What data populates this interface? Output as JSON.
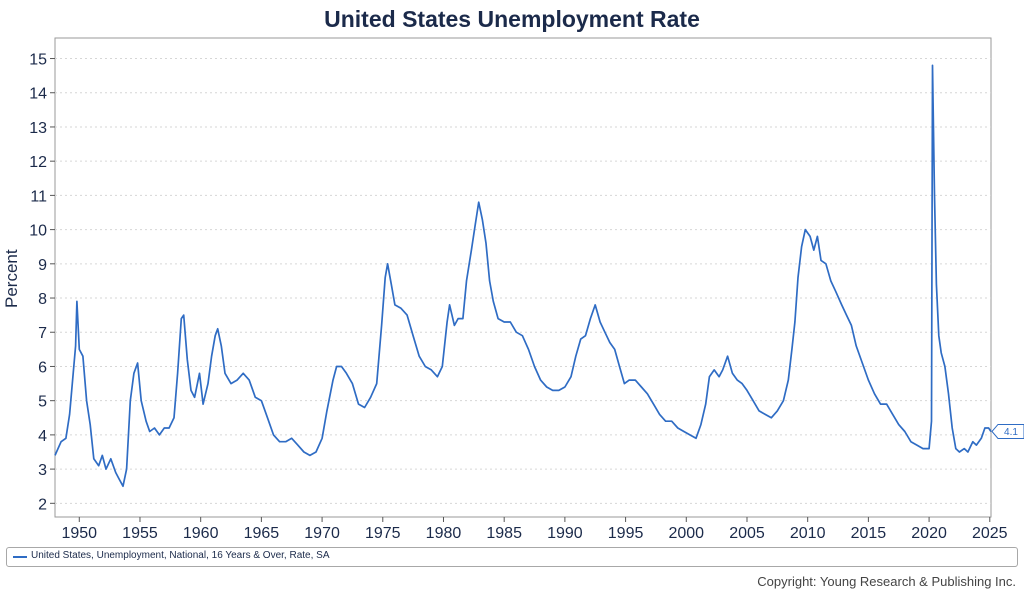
{
  "chart_data": {
    "type": "line",
    "title": "United States Unemployment Rate",
    "xlabel": "",
    "ylabel": "Percent",
    "xlim": [
      1948.0,
      2025.1
    ],
    "ylim": [
      1.6,
      15.6
    ],
    "y_ticks": [
      2,
      3,
      4,
      5,
      6,
      7,
      8,
      9,
      10,
      11,
      12,
      13,
      14,
      15
    ],
    "x_ticks": [
      1950,
      1955,
      1960,
      1965,
      1970,
      1975,
      1980,
      1985,
      1990,
      1995,
      2000,
      2005,
      2010,
      2015,
      2020,
      2025
    ],
    "grid": "horizontal dotted",
    "legend_position": "bottom",
    "last_value_label": "4.1",
    "series": [
      {
        "name": "United States, Unemployment, National, 16 Years & Over, Rate, SA",
        "color": "#2f6cc4",
        "points": [
          [
            1948.0,
            3.4
          ],
          [
            1948.5,
            3.8
          ],
          [
            1948.9,
            3.9
          ],
          [
            1949.2,
            4.6
          ],
          [
            1949.5,
            5.8
          ],
          [
            1949.7,
            6.6
          ],
          [
            1949.8,
            7.9
          ],
          [
            1950.0,
            6.5
          ],
          [
            1950.3,
            6.3
          ],
          [
            1950.6,
            5.0
          ],
          [
            1950.9,
            4.3
          ],
          [
            1951.2,
            3.3
          ],
          [
            1951.6,
            3.1
          ],
          [
            1951.9,
            3.4
          ],
          [
            1952.2,
            3.0
          ],
          [
            1952.6,
            3.3
          ],
          [
            1953.0,
            2.9
          ],
          [
            1953.3,
            2.7
          ],
          [
            1953.6,
            2.5
          ],
          [
            1953.9,
            3.0
          ],
          [
            1954.2,
            5.0
          ],
          [
            1954.5,
            5.8
          ],
          [
            1954.8,
            6.1
          ],
          [
            1955.1,
            5.0
          ],
          [
            1955.5,
            4.4
          ],
          [
            1955.8,
            4.1
          ],
          [
            1956.2,
            4.2
          ],
          [
            1956.6,
            4.0
          ],
          [
            1957.0,
            4.2
          ],
          [
            1957.4,
            4.2
          ],
          [
            1957.8,
            4.5
          ],
          [
            1958.1,
            5.8
          ],
          [
            1958.4,
            7.4
          ],
          [
            1958.6,
            7.5
          ],
          [
            1958.9,
            6.2
          ],
          [
            1959.2,
            5.3
          ],
          [
            1959.5,
            5.1
          ],
          [
            1959.9,
            5.8
          ],
          [
            1960.2,
            4.9
          ],
          [
            1960.6,
            5.5
          ],
          [
            1960.9,
            6.3
          ],
          [
            1961.2,
            6.9
          ],
          [
            1961.4,
            7.1
          ],
          [
            1961.7,
            6.6
          ],
          [
            1962.0,
            5.8
          ],
          [
            1962.5,
            5.5
          ],
          [
            1963.0,
            5.6
          ],
          [
            1963.5,
            5.8
          ],
          [
            1964.0,
            5.6
          ],
          [
            1964.5,
            5.1
          ],
          [
            1965.0,
            5.0
          ],
          [
            1965.5,
            4.5
          ],
          [
            1966.0,
            4.0
          ],
          [
            1966.5,
            3.8
          ],
          [
            1967.0,
            3.8
          ],
          [
            1967.5,
            3.9
          ],
          [
            1968.0,
            3.7
          ],
          [
            1968.5,
            3.5
          ],
          [
            1969.0,
            3.4
          ],
          [
            1969.5,
            3.5
          ],
          [
            1970.0,
            3.9
          ],
          [
            1970.4,
            4.7
          ],
          [
            1970.9,
            5.6
          ],
          [
            1971.2,
            6.0
          ],
          [
            1971.6,
            6.0
          ],
          [
            1972.0,
            5.8
          ],
          [
            1972.5,
            5.5
          ],
          [
            1973.0,
            4.9
          ],
          [
            1973.5,
            4.8
          ],
          [
            1974.0,
            5.1
          ],
          [
            1974.5,
            5.5
          ],
          [
            1974.9,
            7.2
          ],
          [
            1975.2,
            8.6
          ],
          [
            1975.4,
            9.0
          ],
          [
            1975.7,
            8.4
          ],
          [
            1976.0,
            7.8
          ],
          [
            1976.5,
            7.7
          ],
          [
            1977.0,
            7.5
          ],
          [
            1977.5,
            6.9
          ],
          [
            1978.0,
            6.3
          ],
          [
            1978.5,
            6.0
          ],
          [
            1979.0,
            5.9
          ],
          [
            1979.5,
            5.7
          ],
          [
            1979.9,
            6.0
          ],
          [
            1980.3,
            7.3
          ],
          [
            1980.5,
            7.8
          ],
          [
            1980.9,
            7.2
          ],
          [
            1981.2,
            7.4
          ],
          [
            1981.6,
            7.4
          ],
          [
            1981.9,
            8.5
          ],
          [
            1982.3,
            9.4
          ],
          [
            1982.6,
            10.1
          ],
          [
            1982.9,
            10.8
          ],
          [
            1983.2,
            10.3
          ],
          [
            1983.5,
            9.6
          ],
          [
            1983.8,
            8.5
          ],
          [
            1984.1,
            7.9
          ],
          [
            1984.5,
            7.4
          ],
          [
            1985.0,
            7.3
          ],
          [
            1985.5,
            7.3
          ],
          [
            1986.0,
            7.0
          ],
          [
            1986.5,
            6.9
          ],
          [
            1987.0,
            6.5
          ],
          [
            1987.5,
            6.0
          ],
          [
            1988.0,
            5.6
          ],
          [
            1988.5,
            5.4
          ],
          [
            1989.0,
            5.3
          ],
          [
            1989.5,
            5.3
          ],
          [
            1990.0,
            5.4
          ],
          [
            1990.5,
            5.7
          ],
          [
            1990.9,
            6.3
          ],
          [
            1991.3,
            6.8
          ],
          [
            1991.7,
            6.9
          ],
          [
            1992.1,
            7.4
          ],
          [
            1992.5,
            7.8
          ],
          [
            1992.9,
            7.3
          ],
          [
            1993.3,
            7.0
          ],
          [
            1993.7,
            6.7
          ],
          [
            1994.1,
            6.5
          ],
          [
            1994.5,
            6.0
          ],
          [
            1994.9,
            5.5
          ],
          [
            1995.3,
            5.6
          ],
          [
            1995.8,
            5.6
          ],
          [
            1996.3,
            5.4
          ],
          [
            1996.8,
            5.2
          ],
          [
            1997.3,
            4.9
          ],
          [
            1997.8,
            4.6
          ],
          [
            1998.3,
            4.4
          ],
          [
            1998.8,
            4.4
          ],
          [
            1999.3,
            4.2
          ],
          [
            1999.8,
            4.1
          ],
          [
            2000.3,
            4.0
          ],
          [
            2000.8,
            3.9
          ],
          [
            2001.2,
            4.3
          ],
          [
            2001.6,
            4.9
          ],
          [
            2001.9,
            5.7
          ],
          [
            2002.3,
            5.9
          ],
          [
            2002.7,
            5.7
          ],
          [
            2003.0,
            5.9
          ],
          [
            2003.4,
            6.3
          ],
          [
            2003.8,
            5.8
          ],
          [
            2004.2,
            5.6
          ],
          [
            2004.6,
            5.5
          ],
          [
            2005.0,
            5.3
          ],
          [
            2005.5,
            5.0
          ],
          [
            2006.0,
            4.7
          ],
          [
            2006.5,
            4.6
          ],
          [
            2007.0,
            4.5
          ],
          [
            2007.5,
            4.7
          ],
          [
            2008.0,
            5.0
          ],
          [
            2008.4,
            5.6
          ],
          [
            2008.7,
            6.5
          ],
          [
            2008.95,
            7.3
          ],
          [
            2009.2,
            8.6
          ],
          [
            2009.5,
            9.5
          ],
          [
            2009.8,
            10.0
          ],
          [
            2010.2,
            9.8
          ],
          [
            2010.5,
            9.4
          ],
          [
            2010.8,
            9.8
          ],
          [
            2011.1,
            9.1
          ],
          [
            2011.5,
            9.0
          ],
          [
            2011.9,
            8.5
          ],
          [
            2012.3,
            8.2
          ],
          [
            2012.8,
            7.8
          ],
          [
            2013.2,
            7.5
          ],
          [
            2013.6,
            7.2
          ],
          [
            2014.0,
            6.6
          ],
          [
            2014.5,
            6.1
          ],
          [
            2015.0,
            5.6
          ],
          [
            2015.5,
            5.2
          ],
          [
            2016.0,
            4.9
          ],
          [
            2016.5,
            4.9
          ],
          [
            2017.0,
            4.6
          ],
          [
            2017.5,
            4.3
          ],
          [
            2018.0,
            4.1
          ],
          [
            2018.5,
            3.8
          ],
          [
            2019.0,
            3.7
          ],
          [
            2019.5,
            3.6
          ],
          [
            2020.0,
            3.6
          ],
          [
            2020.2,
            4.4
          ],
          [
            2020.28,
            14.8
          ],
          [
            2020.45,
            11.0
          ],
          [
            2020.6,
            8.4
          ],
          [
            2020.8,
            6.9
          ],
          [
            2021.0,
            6.4
          ],
          [
            2021.3,
            6.0
          ],
          [
            2021.6,
            5.2
          ],
          [
            2021.9,
            4.2
          ],
          [
            2022.2,
            3.6
          ],
          [
            2022.5,
            3.5
          ],
          [
            2022.9,
            3.6
          ],
          [
            2023.2,
            3.5
          ],
          [
            2023.6,
            3.8
          ],
          [
            2023.9,
            3.7
          ],
          [
            2024.3,
            3.9
          ],
          [
            2024.6,
            4.2
          ],
          [
            2024.9,
            4.2
          ],
          [
            2025.1,
            4.1
          ]
        ]
      }
    ]
  },
  "copyright": "Copyright: Young Research & Publishing Inc."
}
